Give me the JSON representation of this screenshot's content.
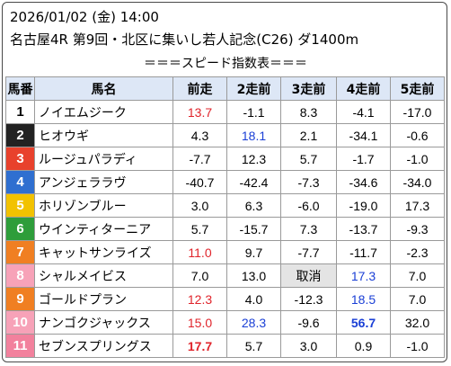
{
  "header": {
    "datetime": "2026/01/02 (金) 14:00",
    "race": "名古屋4R 第9回・北区に集いし若人記念(C26) ダ1400m"
  },
  "table_title": "＝＝＝スピード指数表＝＝＝",
  "columns": [
    "馬番",
    "馬名",
    "前走",
    "2走前",
    "3走前",
    "4走前",
    "5走前"
  ],
  "rows": [
    {
      "num": "1",
      "name": "ノイエムジーク",
      "bg": "#ffffff",
      "fg": "#000000",
      "v": [
        "13.7",
        "-1.1",
        "8.3",
        "-4.1",
        "-17.0"
      ],
      "style": [
        "red",
        "",
        "",
        "",
        ""
      ]
    },
    {
      "num": "2",
      "name": "ヒオウギ",
      "bg": "#222222",
      "fg": "#ffffff",
      "v": [
        "4.3",
        "18.1",
        "2.1",
        "-34.1",
        "-0.6"
      ],
      "style": [
        "",
        "blue",
        "",
        "",
        ""
      ]
    },
    {
      "num": "3",
      "name": "ルージュパラディ",
      "bg": "#e8412c",
      "fg": "#ffffff",
      "v": [
        "-7.7",
        "12.3",
        "5.7",
        "-1.7",
        "-1.0"
      ],
      "style": [
        "",
        "",
        "",
        "",
        ""
      ]
    },
    {
      "num": "4",
      "name": "アンジェララヴ",
      "bg": "#2f6fd0",
      "fg": "#ffffff",
      "v": [
        "-40.7",
        "-42.4",
        "-7.3",
        "-34.6",
        "-34.0"
      ],
      "style": [
        "",
        "",
        "",
        "",
        ""
      ]
    },
    {
      "num": "5",
      "name": "ホリゾンブルー",
      "bg": "#f2c200",
      "fg": "#ffffff",
      "v": [
        "3.0",
        "6.3",
        "-6.0",
        "-19.0",
        "17.3"
      ],
      "style": [
        "",
        "",
        "",
        "",
        ""
      ]
    },
    {
      "num": "6",
      "name": "ウインティターニア",
      "bg": "#2e9d3a",
      "fg": "#ffffff",
      "v": [
        "5.7",
        "-15.7",
        "7.3",
        "-13.7",
        "-9.3"
      ],
      "style": [
        "",
        "",
        "",
        "",
        ""
      ]
    },
    {
      "num": "7",
      "name": "キャットサンライズ",
      "bg": "#f07f22",
      "fg": "#ffffff",
      "v": [
        "11.0",
        "9.7",
        "-7.7",
        "-11.7",
        "-2.3"
      ],
      "style": [
        "red",
        "",
        "",
        "",
        ""
      ]
    },
    {
      "num": "8",
      "name": "シャルメイビス",
      "bg": "#f7a2b8",
      "fg": "#ffffff",
      "v": [
        "7.0",
        "13.0",
        "取消",
        "17.3",
        "7.0"
      ],
      "style": [
        "",
        "",
        "gray",
        "blue",
        ""
      ]
    },
    {
      "num": "9",
      "name": "ゴールドプラン",
      "bg": "#f07f22",
      "fg": "#ffffff",
      "v": [
        "12.3",
        "4.0",
        "-12.3",
        "18.5",
        "7.0"
      ],
      "style": [
        "red",
        "",
        "",
        "blue",
        ""
      ]
    },
    {
      "num": "10",
      "name": "ナンゴクジャックス",
      "bg": "#f7a2b8",
      "fg": "#ffffff",
      "v": [
        "15.0",
        "28.3",
        "-9.6",
        "56.7",
        "32.0"
      ],
      "style": [
        "red",
        "blue",
        "",
        "blue bold",
        ""
      ]
    },
    {
      "num": "11",
      "name": "セブンスプリングス",
      "bg": "#f2819d",
      "fg": "#ffffff",
      "v": [
        "17.7",
        "5.7",
        "3.0",
        "0.9",
        "-1.0"
      ],
      "style": [
        "red bold",
        "",
        "",
        "",
        ""
      ]
    }
  ]
}
